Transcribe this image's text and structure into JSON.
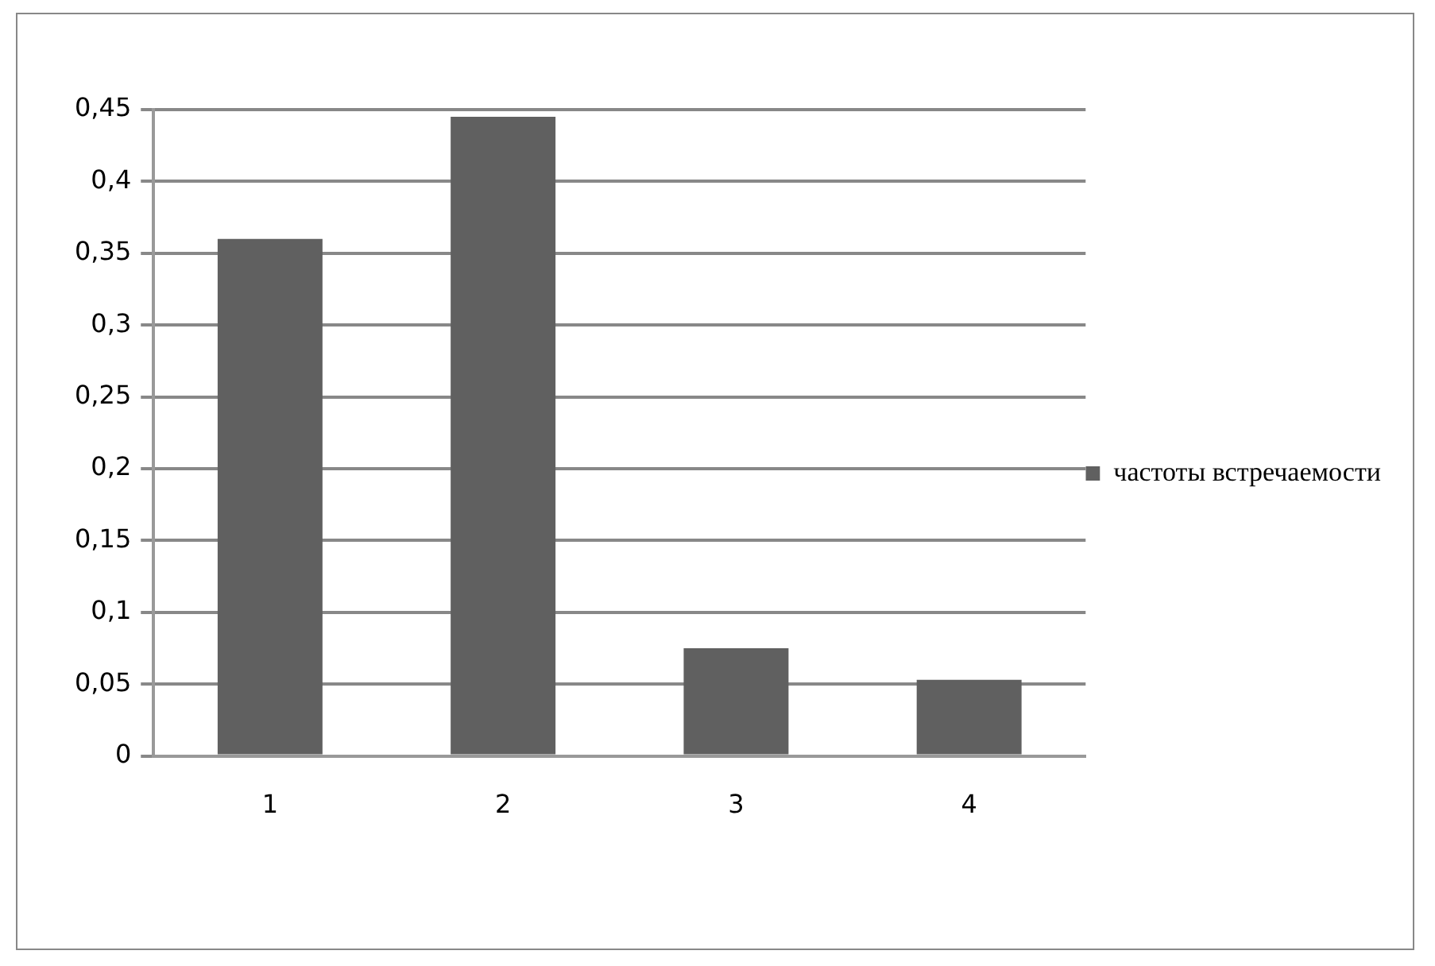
{
  "chart_data": {
    "type": "bar",
    "categories": [
      "1",
      "2",
      "3",
      "4"
    ],
    "series": [
      {
        "name": "частоты встречаемости",
        "color": "#606060",
        "values": [
          0.36,
          0.445,
          0.075,
          0.053
        ]
      }
    ],
    "ylim": [
      0,
      0.45
    ],
    "yticks": [
      0,
      {
        "value": 0.05,
        "label": "0,05"
      },
      {
        "value": 0.1,
        "label": "0,1"
      },
      {
        "value": 0.15,
        "label": "0,15"
      },
      {
        "value": 0.2,
        "label": "0,2"
      },
      {
        "value": 0.25,
        "label": "0,25"
      },
      {
        "value": 0.3,
        "label": "0,3"
      },
      {
        "value": 0.35,
        "label": "0,35"
      },
      {
        "value": 0.4,
        "label": "0,4"
      },
      {
        "value": 0.45,
        "label": "0,45"
      }
    ],
    "grid": "y",
    "legend": "right"
  }
}
